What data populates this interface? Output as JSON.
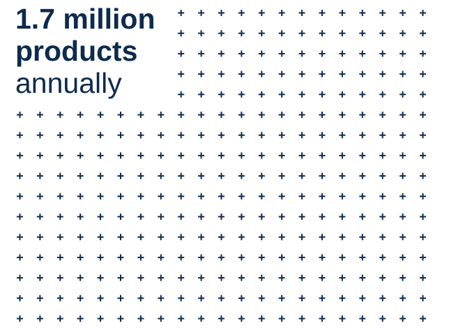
{
  "headline": {
    "line1": "1.7 million",
    "line2": "products",
    "line3": "annually"
  },
  "pattern": {
    "symbol": "plus-icon",
    "color": "#0d2b4e"
  },
  "colors": {
    "text": "#0d2b4e",
    "background": "#ffffff"
  }
}
